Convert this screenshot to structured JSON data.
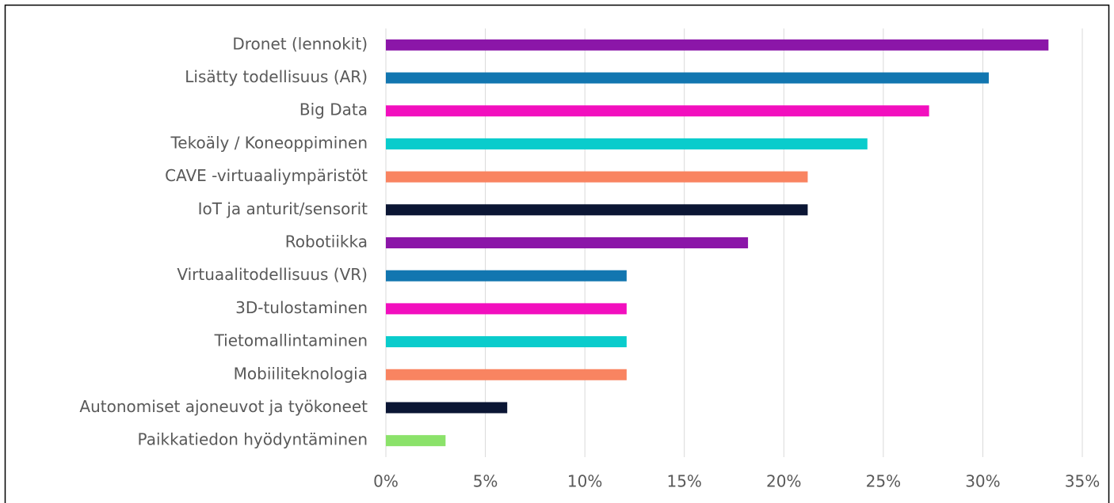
{
  "chart_data": {
    "type": "hbar",
    "categories": [
      "Dronet (lennokit)",
      "Lisätty todellisuus (AR)",
      "Big Data",
      "Tekoäly / Koneoppiminen",
      "CAVE -virtuaaliympäristöt",
      "IoT ja anturit/sensorit",
      "Robotiikka",
      "Virtuaalitodellisuus (VR)",
      "3D-tulostaminen",
      "Tietomallintaminen",
      "Mobiiliteknologia",
      "Autonomiset ajoneuvot ja työkoneet",
      "Paikkatiedon hyödyntäminen"
    ],
    "values": [
      33.3,
      30.3,
      27.3,
      24.2,
      21.2,
      21.2,
      18.2,
      12.1,
      12.1,
      12.1,
      12.1,
      6.1,
      3.0
    ],
    "colors": [
      "#8b16a8",
      "#1276b0",
      "#f20fbe",
      "#0acccc",
      "#f98461",
      "#0b1634",
      "#8b16a8",
      "#1276b0",
      "#f20fbe",
      "#0acccc",
      "#f98461",
      "#0b1634",
      "#8be26a"
    ],
    "xlim": [
      0,
      35
    ],
    "xticks": [
      {
        "value": 0,
        "label": "0%"
      },
      {
        "value": 5,
        "label": "5%"
      },
      {
        "value": 10,
        "label": "10%"
      },
      {
        "value": 15,
        "label": "15%"
      },
      {
        "value": 20,
        "label": "20%"
      },
      {
        "value": 25,
        "label": "25%"
      },
      {
        "value": 30,
        "label": "30%"
      },
      {
        "value": 35,
        "label": "35%"
      }
    ],
    "grid": true
  }
}
